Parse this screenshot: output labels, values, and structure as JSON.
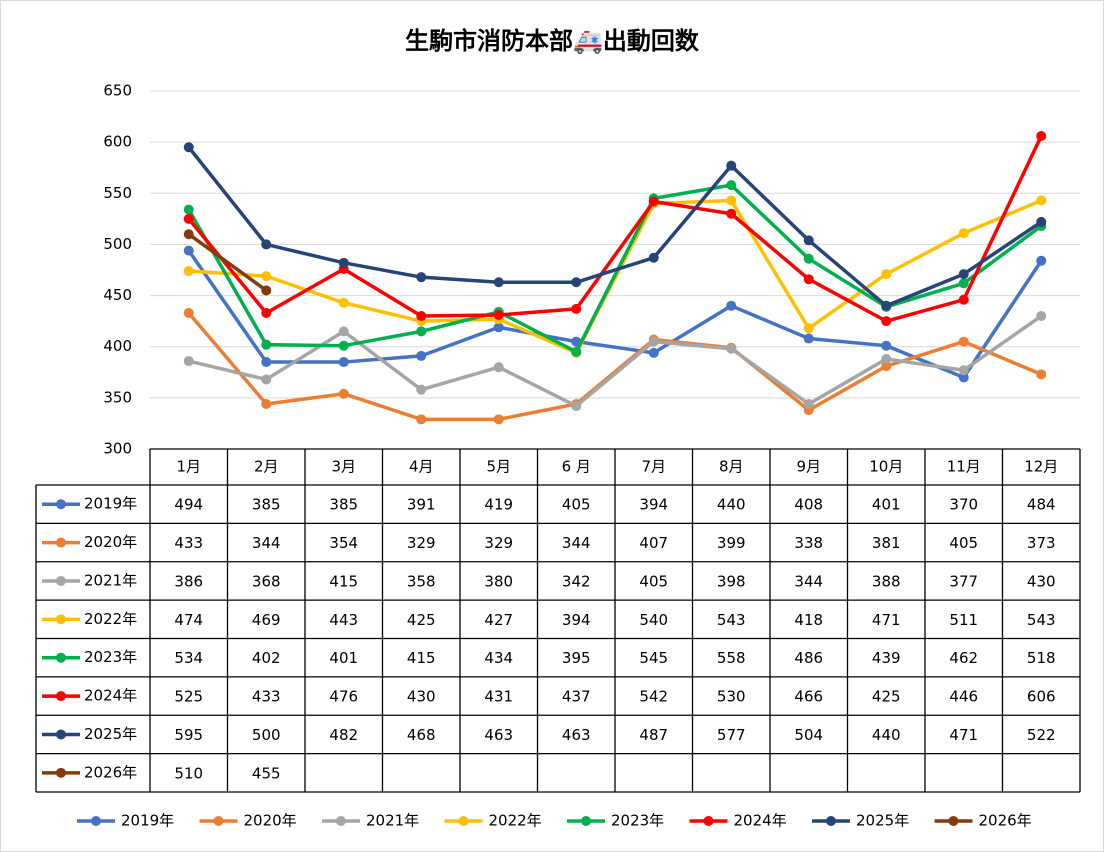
{
  "chart_data": {
    "type": "line",
    "title": "生駒市消防本部🚑出動回数",
    "categories": [
      "1月",
      "2月",
      "3月",
      "4月",
      "5月",
      "6 月",
      "7月",
      "8月",
      "9月",
      "10月",
      "11月",
      "12月"
    ],
    "series": [
      {
        "name": "2019年",
        "color": "#4472c4",
        "values": [
          494,
          385,
          385,
          391,
          419,
          405,
          394,
          440,
          408,
          401,
          370,
          484
        ]
      },
      {
        "name": "2020年",
        "color": "#ed7d31",
        "values": [
          433,
          344,
          354,
          329,
          329,
          344,
          407,
          399,
          338,
          381,
          405,
          373
        ]
      },
      {
        "name": "2021年",
        "color": "#a5a5a5",
        "values": [
          386,
          368,
          415,
          358,
          380,
          342,
          405,
          398,
          344,
          388,
          377,
          430
        ]
      },
      {
        "name": "2022年",
        "color": "#ffc000",
        "values": [
          474,
          469,
          443,
          425,
          427,
          394,
          540,
          543,
          418,
          471,
          511,
          543
        ]
      },
      {
        "name": "2023年",
        "color": "#00b050",
        "values": [
          534,
          402,
          401,
          415,
          434,
          395,
          545,
          558,
          486,
          439,
          462,
          518
        ]
      },
      {
        "name": "2024年",
        "color": "#ff0000",
        "values": [
          525,
          433,
          476,
          430,
          431,
          437,
          542,
          530,
          466,
          425,
          446,
          606
        ]
      },
      {
        "name": "2025年",
        "color": "#264478",
        "values": [
          595,
          500,
          482,
          468,
          463,
          463,
          487,
          577,
          504,
          440,
          471,
          522
        ]
      },
      {
        "name": "2026年",
        "color": "#843c0c",
        "values": [
          510,
          455,
          null,
          null,
          null,
          null,
          null,
          null,
          null,
          null,
          null,
          null
        ]
      }
    ],
    "ylim": [
      300,
      650
    ],
    "yticks": [
      300,
      350,
      400,
      450,
      500,
      550,
      600,
      650
    ],
    "grid": true,
    "legend": "bottom",
    "data_table": true
  }
}
